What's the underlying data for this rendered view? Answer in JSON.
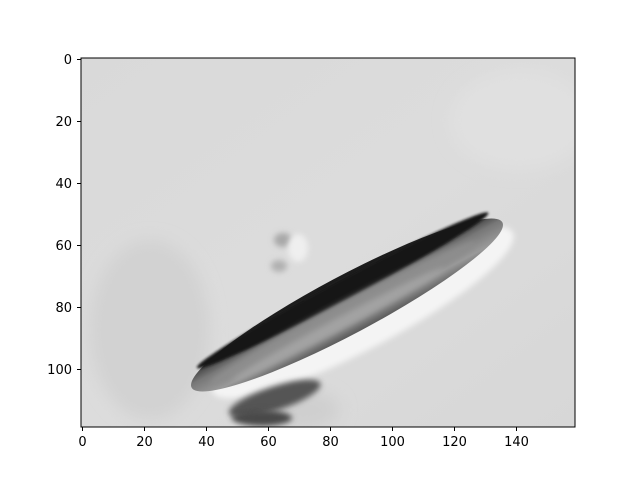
{
  "image_view": {
    "colormap": "gray",
    "x_axis": {
      "range": [
        0,
        159
      ],
      "ticks": [
        "0",
        "20",
        "40",
        "60",
        "80",
        "100",
        "120",
        "140"
      ]
    },
    "y_axis": {
      "range": [
        0,
        119
      ],
      "inverted": true,
      "ticks": [
        "0",
        "20",
        "40",
        "60",
        "80",
        "100"
      ]
    },
    "grid": false,
    "content": "grayscale microscopy image of an elongated dark ellipse oriented diagonally"
  }
}
